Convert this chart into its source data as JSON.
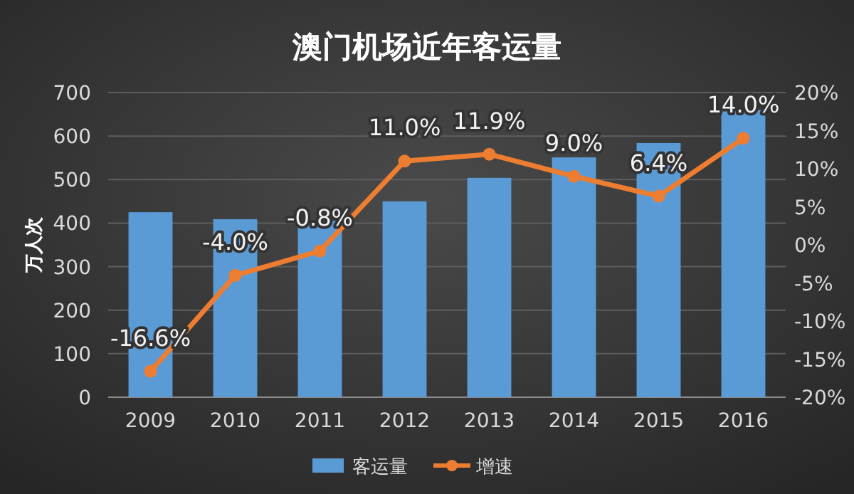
{
  "chart_data": {
    "type": "bar",
    "title": "澳门机场近年客运量",
    "ylabel": "万人次",
    "categories": [
      "2009",
      "2010",
      "2011",
      "2012",
      "2013",
      "2014",
      "2015",
      "2016"
    ],
    "series": [
      {
        "name": "客运量",
        "color": "#5b9bd5",
        "values": [
          425,
          409,
          405,
          450,
          504,
          551,
          584,
          660
        ]
      },
      {
        "name": "增速",
        "type": "line",
        "axis": "y2",
        "color": "#ed7d31",
        "marker": "circle",
        "values": [
          -16.6,
          -4.0,
          -0.8,
          11.0,
          11.9,
          9.0,
          6.4,
          14.0
        ],
        "value_labels": [
          "-16.6%",
          "-4.0%",
          "-0.8%",
          "11.0%",
          "11.9%",
          "9.0%",
          "6.4%",
          "14.0%"
        ]
      }
    ],
    "ylim": [
      0,
      700
    ],
    "yticks": [
      0,
      100,
      200,
      300,
      400,
      500,
      600,
      700
    ],
    "y2lim": [
      -20,
      20
    ],
    "y2ticks": [
      {
        "value": -20,
        "label": "-20%"
      },
      {
        "value": -15,
        "label": "-15%"
      },
      {
        "value": -10,
        "label": "-10%"
      },
      {
        "value": -5,
        "label": "-5%"
      },
      {
        "value": 0,
        "label": "0%"
      },
      {
        "value": 5,
        "label": "5%"
      },
      {
        "value": 10,
        "label": "10%"
      },
      {
        "value": 15,
        "label": "15%"
      },
      {
        "value": 20,
        "label": "20%"
      }
    ],
    "grid": "y",
    "legend": "bottom"
  }
}
